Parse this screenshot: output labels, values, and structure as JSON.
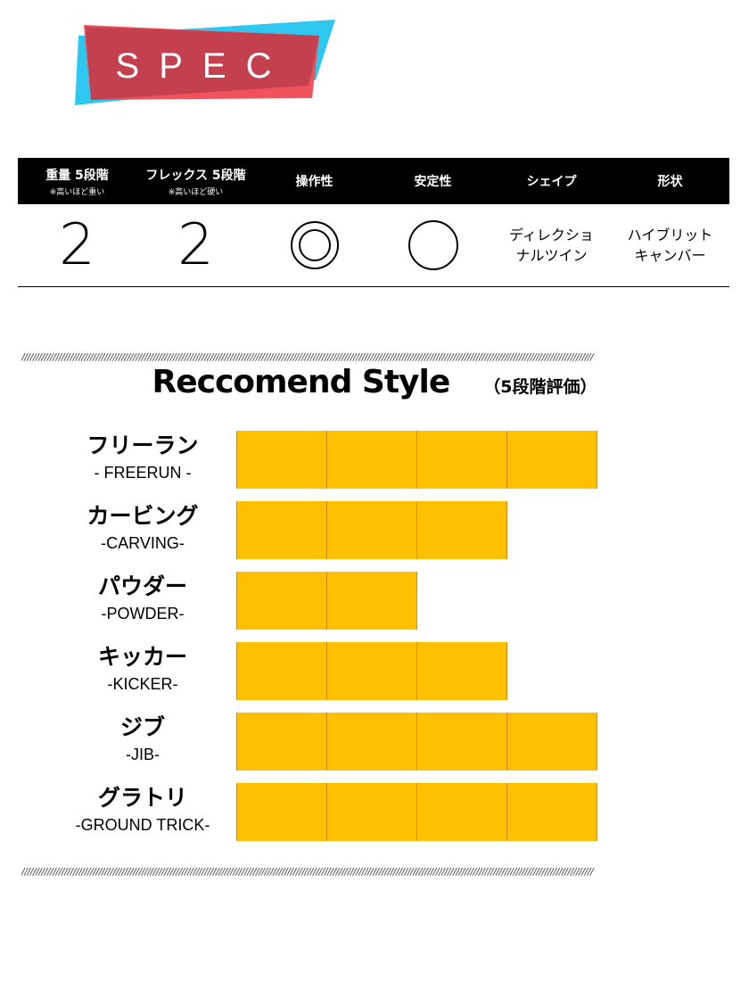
{
  "logo": {
    "text": "SPEC",
    "colors": {
      "red": "#c5404e",
      "blue": "#2ec7ef"
    }
  },
  "spec": {
    "columns": [
      {
        "title": "重量 5段階",
        "note": "※高いほど重い",
        "value": "2"
      },
      {
        "title": "フレックス 5段階",
        "note": "※高いほど硬い",
        "value": "2"
      },
      {
        "title": "操作性",
        "rating": "double-circle"
      },
      {
        "title": "安定性",
        "rating": "circle"
      },
      {
        "title": "シェイプ",
        "value_lines": [
          "ディレクショ",
          "ナルツイン"
        ]
      },
      {
        "title": "形状",
        "value_lines": [
          "ハイブリット",
          "キャンバー"
        ]
      }
    ]
  },
  "recommend": {
    "title": "Reccomend Style",
    "subtitle": "（5段階評価）",
    "max": 5,
    "bar_color": "#fec000",
    "items": [
      {
        "jp": "フリーラン",
        "en": "- FREERUN -",
        "value": 4
      },
      {
        "jp": "カービング",
        "en": "-CARVING-",
        "value": 3
      },
      {
        "jp": "パウダー",
        "en": "-POWDER-",
        "value": 2
      },
      {
        "jp": "キッカー",
        "en": "-KICKER-",
        "value": 3
      },
      {
        "jp": "ジブ",
        "en": "-JIB-",
        "value": 4
      },
      {
        "jp": "グラトリ",
        "en": "-GROUND TRICK-",
        "value": 4
      }
    ]
  }
}
